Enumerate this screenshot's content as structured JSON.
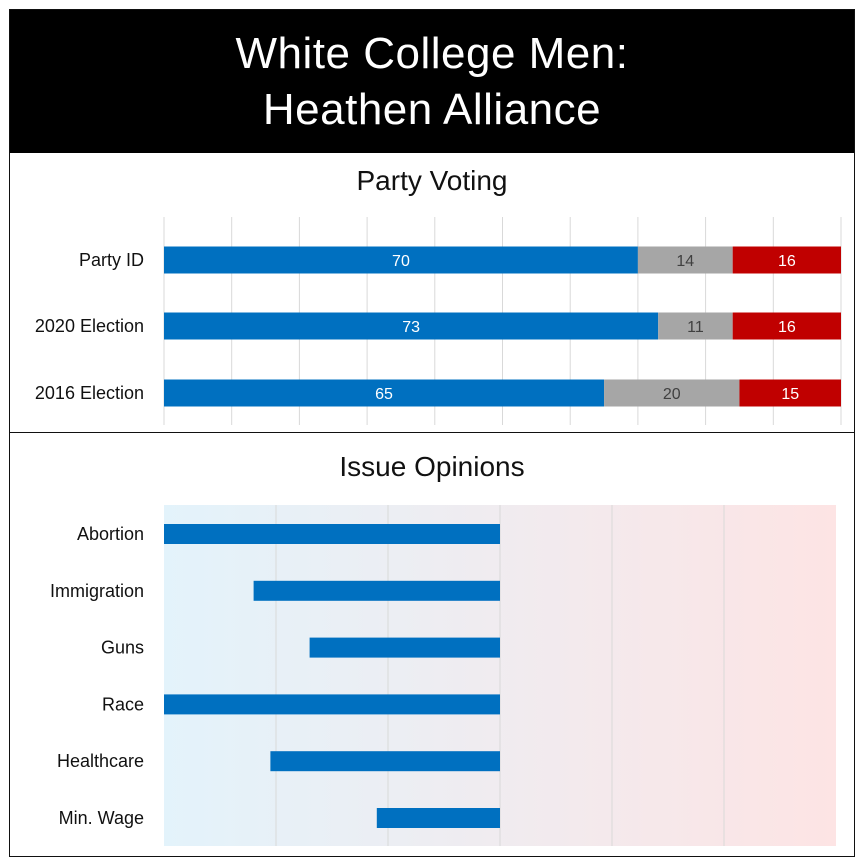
{
  "header": {
    "title_line1": "White College Men:",
    "title_line2": "Heathen Alliance"
  },
  "colors": {
    "dem": "#0070C0",
    "neutral": "#A6A6A6",
    "rep": "#C00000",
    "neutral_label": "#404040",
    "gradient_left": "#E3F3FB",
    "gradient_right": "#FDE4E4",
    "grid": "#D9D9D9"
  },
  "chart_data": [
    {
      "type": "bar",
      "orientation": "horizontal",
      "stacked": true,
      "title": "Party Voting",
      "categories": [
        "Party ID",
        "2020 Election",
        "2016 Election"
      ],
      "series": [
        {
          "values": [
            70,
            73,
            65
          ],
          "color": "#0070C0"
        },
        {
          "values": [
            14,
            11,
            20
          ],
          "color": "#A6A6A6"
        },
        {
          "values": [
            16,
            16,
            15
          ],
          "color": "#C00000"
        }
      ],
      "xlim": [
        0,
        100
      ],
      "grid": true,
      "data_labels": true
    },
    {
      "type": "bar",
      "orientation": "horizontal",
      "title": "Issue Opinions",
      "categories": [
        "Abortion",
        "Immigration",
        "Guns",
        "Race",
        "Healthcare",
        "Min. Wage"
      ],
      "ranges": [
        [
          0,
          3
        ],
        [
          0.8,
          3
        ],
        [
          1.3,
          3
        ],
        [
          0,
          3
        ],
        [
          0.95,
          3
        ],
        [
          1.9,
          3
        ]
      ],
      "xlim": [
        0,
        6
      ],
      "grid": true,
      "background": "gradient blue-to-red"
    }
  ]
}
